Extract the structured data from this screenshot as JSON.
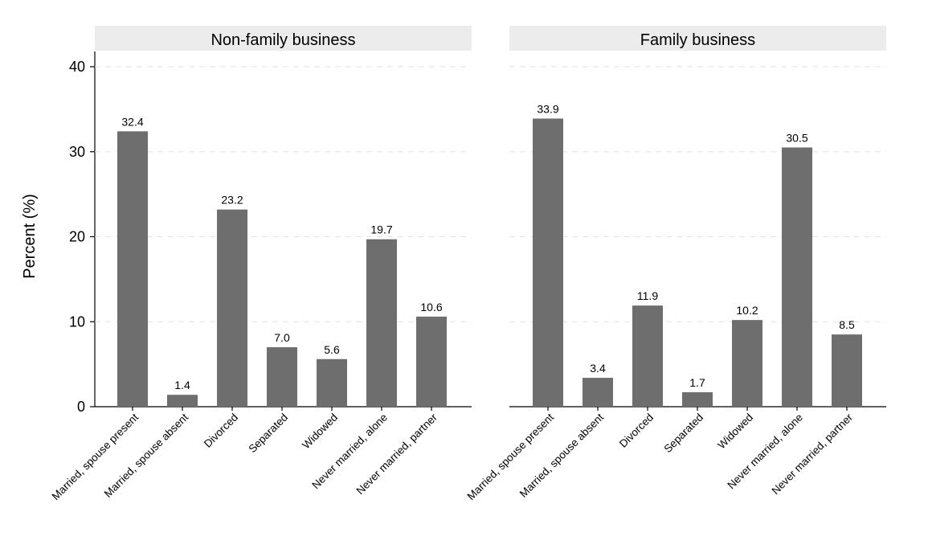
{
  "chart_data": {
    "type": "bar",
    "ylabel": "Percent (%)",
    "ylim": [
      0,
      40
    ],
    "yticks": [
      0,
      10,
      20,
      30,
      40
    ],
    "grid": "horizontal-dashed",
    "bar_color": "#6e6e6e",
    "title_bar_color": "#ececec",
    "categories": [
      "Married, spouse present",
      "Married, spouse absent",
      "Divorced",
      "Separated",
      "Widowed",
      "Never married, alone",
      "Never married, partner"
    ],
    "panels": [
      {
        "title": "Non-family business",
        "values": [
          32.4,
          1.4,
          23.2,
          7.0,
          5.6,
          19.7,
          10.6
        ],
        "labels": [
          "32.4",
          "1.4",
          "23.2",
          "7.0",
          "5.6",
          "19.7",
          "10.6"
        ]
      },
      {
        "title": "Family business",
        "values": [
          33.9,
          3.4,
          11.9,
          1.7,
          10.2,
          30.5,
          8.5
        ],
        "labels": [
          "33.9",
          "3.4",
          "11.9",
          "1.7",
          "10.2",
          "30.5",
          "8.5"
        ]
      }
    ]
  }
}
